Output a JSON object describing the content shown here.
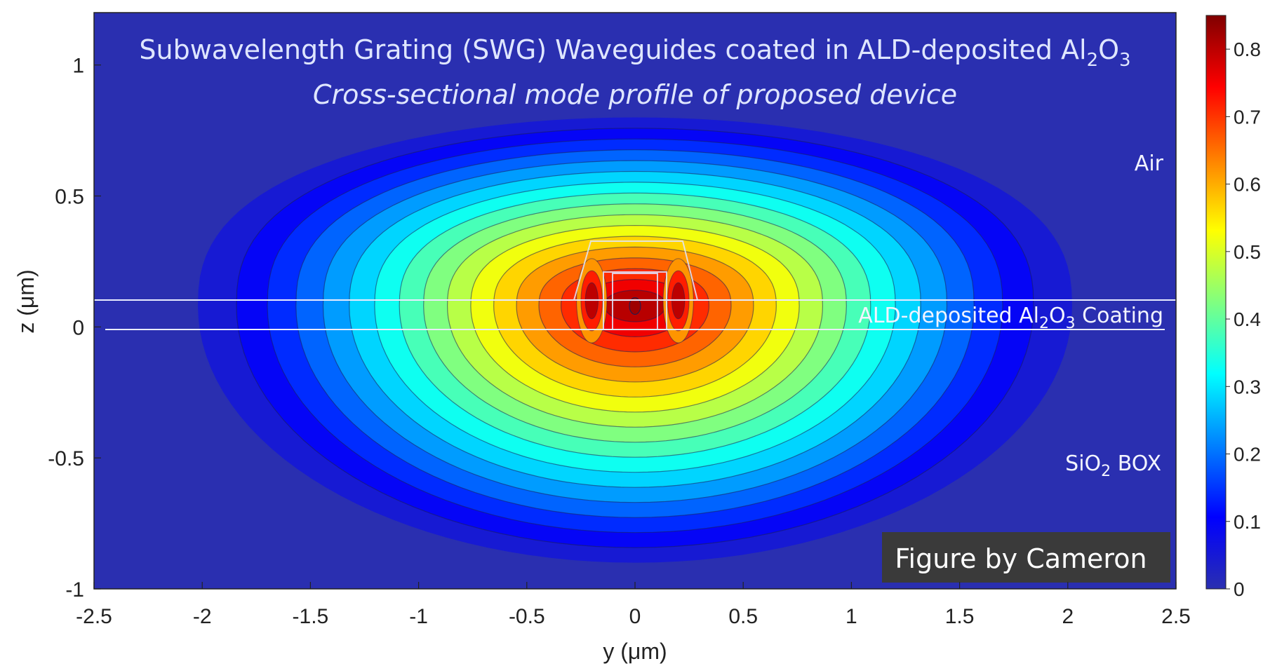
{
  "chart_data": {
    "type": "heatmap",
    "title": {
      "main": "Subwavelength Grating (SWG) Waveguides coated in ALD-deposited Al",
      "sub1": "2",
      "mid": "O",
      "sub2": "3"
    },
    "subtitle": "Cross-sectional mode profile of proposed device",
    "xlabel": "y (μm)",
    "ylabel": "z (μm)",
    "xlim": [
      -2.5,
      2.5
    ],
    "ylim": [
      -1,
      1.2
    ],
    "xticks": [
      "-2.5",
      "-2",
      "-1.5",
      "-1",
      "-0.5",
      "0",
      "0.5",
      "1",
      "1.5",
      "2",
      "2.5"
    ],
    "xtick_values": [
      -2.5,
      -2,
      -1.5,
      -1,
      -0.5,
      0,
      0.5,
      1,
      1.5,
      2,
      2.5
    ],
    "yticks": [
      "-1",
      "-0.5",
      "0",
      "0.5",
      "1"
    ],
    "ytick_values": [
      -1,
      -0.5,
      0,
      0.5,
      1
    ],
    "colorbar": {
      "min": 0,
      "max": 0.85,
      "ticks": [
        "0",
        "0.1",
        "0.2",
        "0.3",
        "0.4",
        "0.5",
        "0.6",
        "0.7",
        "0.8"
      ],
      "tick_values": [
        0,
        0.1,
        0.2,
        0.3,
        0.4,
        0.5,
        0.6,
        0.7,
        0.8
      ],
      "colormap": "jet"
    },
    "coating_layer_z": [
      0,
      0.12
    ],
    "field_peak": {
      "y": 0,
      "z": 0.08,
      "value": 0.85
    },
    "annotations": {
      "air": "Air",
      "coating": {
        "pre": "ALD-deposited Al",
        "sub1": "2",
        "mid": "O",
        "sub2": "3",
        "post": " Coating"
      },
      "box": {
        "pre": "SiO",
        "sub": "2",
        "post": " BOX"
      }
    },
    "credit": "Figure by Cameron",
    "background_color": "#2a2fb0",
    "colors": {
      "jet": [
        "#2a2fb0",
        "#0000ff",
        "#0080ff",
        "#00ffff",
        "#80ff80",
        "#ffff00",
        "#ff8000",
        "#ff0000",
        "#800000"
      ]
    }
  }
}
